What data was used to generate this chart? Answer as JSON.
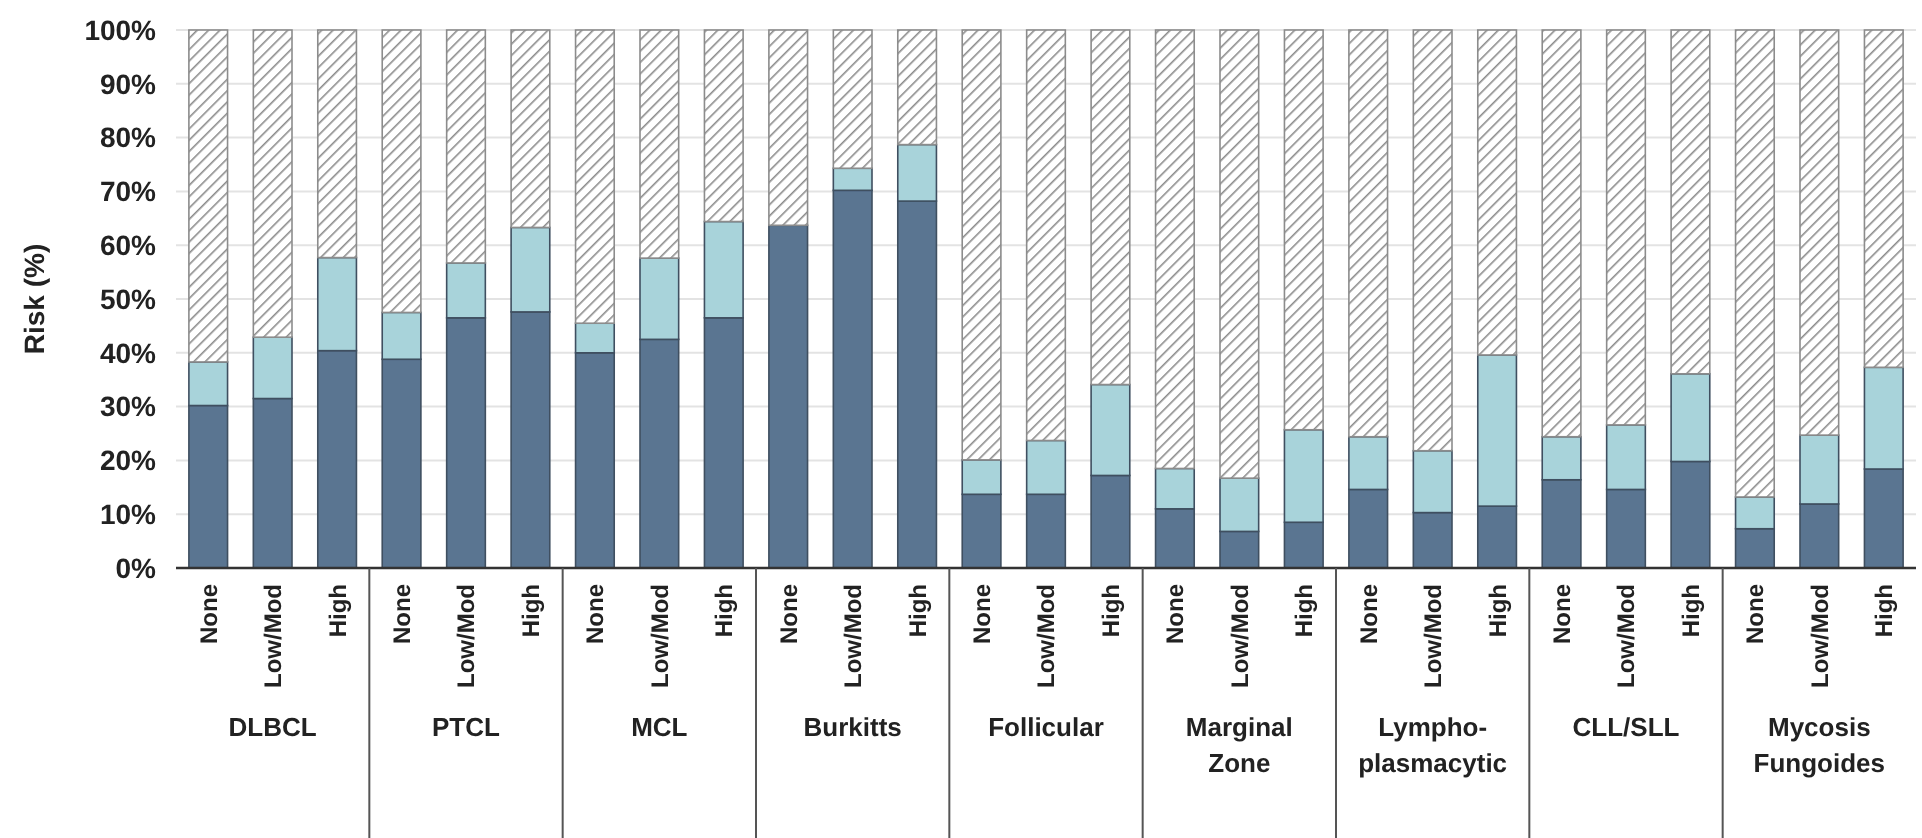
{
  "chart_data": {
    "type": "bar",
    "stacked": true,
    "ylabel": "Risk (%)",
    "categories": [
      "None",
      "Low/Mod",
      "High",
      "None",
      "Low/Mod",
      "High",
      "None",
      "Low/Mod",
      "High",
      "None",
      "Low/Mod",
      "High",
      "None",
      "Low/Mod",
      "High",
      "None",
      "Low/Mod",
      "High",
      "None",
      "Low/Mod",
      "High",
      "None",
      "Low/Mod",
      "High",
      "None",
      "Low/Mod",
      "High"
    ],
    "annotations": [
      "DLBCL",
      "PTCL",
      "MCL",
      "Burkitts",
      "Follicular",
      "Marginal\nZone",
      "Lympho-\nplasmacytic",
      "CLL/SLL",
      "Mycosis\nFungoides"
    ],
    "series": [
      {
        "color": "#5a7591",
        "values": [
          30.2,
          31.5,
          40.4,
          38.8,
          46.5,
          47.6,
          40.0,
          42.5,
          46.5,
          63.7,
          70.2,
          68.2,
          13.7,
          13.7,
          17.2,
          11.0,
          6.8,
          8.5,
          14.6,
          10.3,
          11.5,
          16.4,
          14.6,
          19.8,
          7.3,
          11.9,
          18.4
        ]
      },
      {
        "color": "#a8d3da",
        "values": [
          8.1,
          11.4,
          17.3,
          8.7,
          10.2,
          15.7,
          5.5,
          15.1,
          17.9,
          null,
          4.1,
          10.5,
          6.4,
          10.0,
          16.9,
          7.5,
          9.9,
          17.2,
          9.8,
          11.5,
          28.1,
          8.0,
          12.0,
          16.3,
          5.9,
          12.8,
          18.9
        ]
      },
      {
        "color": "#8c8c8c",
        "values": [
          61.7,
          57.1,
          42.3,
          52.5,
          43.3,
          36.7,
          54.5,
          42.4,
          35.6,
          36.3,
          25.7,
          21.3,
          79.9,
          76.3,
          65.9,
          81.5,
          83.3,
          74.3,
          75.6,
          78.2,
          60.4,
          75.6,
          73.4,
          63.9,
          86.8,
          75.3,
          62.7
        ]
      }
    ],
    "ylim": [
      0,
      100
    ],
    "yticks": [
      {
        "value": 0,
        "label": "0%"
      },
      {
        "value": 10,
        "label": "10%"
      },
      {
        "value": 20,
        "label": "20%"
      },
      {
        "value": 30,
        "label": "30%"
      },
      {
        "value": 40,
        "label": "40%"
      },
      {
        "value": 50,
        "label": "50%"
      },
      {
        "value": 60,
        "label": "60%"
      },
      {
        "value": 70,
        "label": "70%"
      },
      {
        "value": 80,
        "label": "80%"
      },
      {
        "value": 90,
        "label": "90%"
      },
      {
        "value": 100,
        "label": "100%"
      }
    ],
    "grid": "y"
  }
}
